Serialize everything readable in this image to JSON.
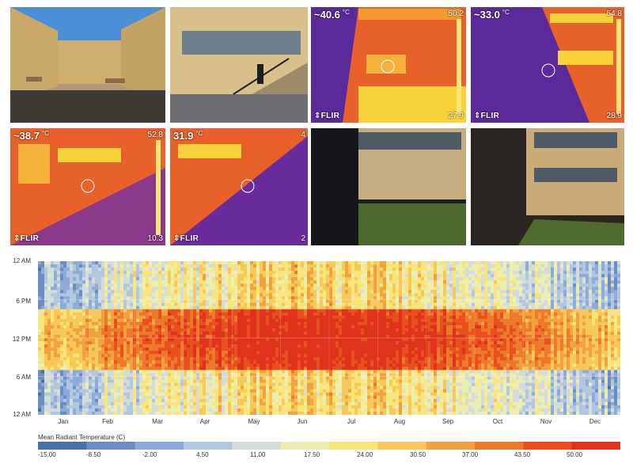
{
  "thermal_tiles": [
    {
      "readout": "~40.6",
      "unit": "°C",
      "scale_max": "50.2",
      "scale_min": "27.9",
      "logo": "⇕FLIR"
    },
    {
      "readout": "~33.0",
      "unit": "°C",
      "scale_max": "54.8",
      "scale_min": "28.9",
      "logo": "⇕FLIR"
    },
    {
      "readout": "~38.7",
      "unit": "°C",
      "scale_max": "52.8",
      "scale_min": "10.3",
      "logo": "⇕FLIR"
    },
    {
      "readout": "31.9",
      "unit": "°C",
      "scale_max": "4",
      "scale_min": "2",
      "logo": "⇕FLIR"
    }
  ],
  "heatmap": {
    "y_labels": [
      "12 AM",
      "6 PM",
      "12 PM",
      "6 AM",
      "12 AM"
    ],
    "x_labels": [
      "Jan",
      "Feb",
      "Mar",
      "Apr",
      "May",
      "Jun",
      "Jul",
      "Aug",
      "Sep",
      "Oct",
      "Nov",
      "Dec"
    ]
  },
  "legend": {
    "title": "Mean Radiant Temperature (C)",
    "ticks": [
      "-15.00",
      "-8.50",
      "-2.00",
      "4.50",
      "11.00",
      "17.50",
      "24.00",
      "30.50",
      "37.00",
      "43.50",
      "50.00"
    ],
    "colors": [
      "#4a6fa5",
      "#6b8dc2",
      "#8eaad6",
      "#b3c6e0",
      "#d3dcd8",
      "#ecedb0",
      "#f8e57a",
      "#f7c85a",
      "#f2a140",
      "#ec7a2c",
      "#e8501f",
      "#e0331b"
    ]
  },
  "colors": {
    "building_brick": "#c9a86a",
    "sky": "#4b8fd9",
    "thermal_hot": "#f7d23a",
    "thermal_mid": "#e8602a",
    "thermal_cold": "#5a2a9a"
  }
}
